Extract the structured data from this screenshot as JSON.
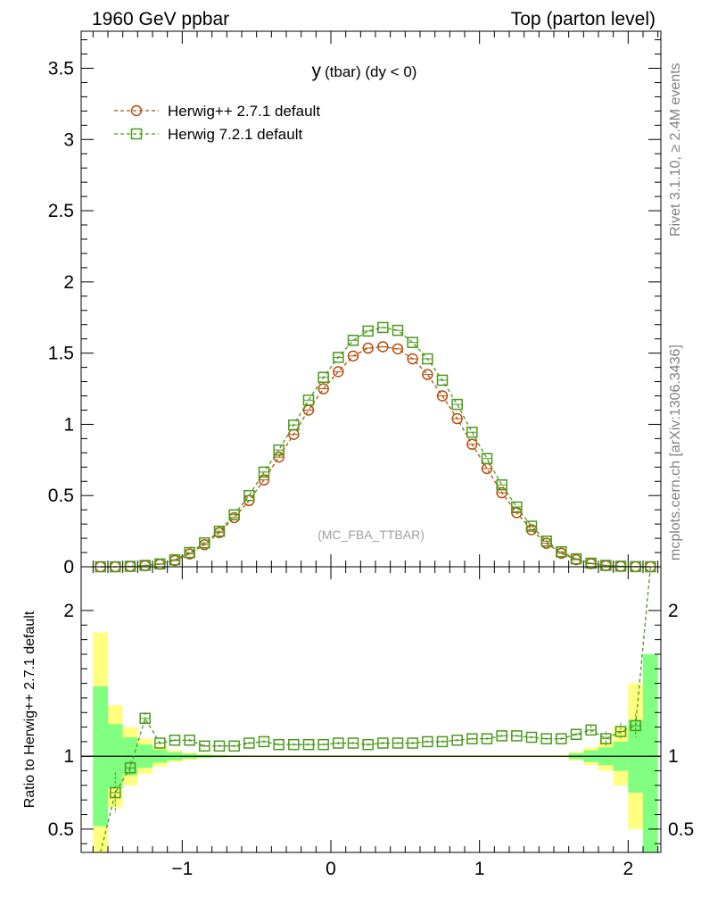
{
  "header": {
    "left": "1960 GeV ppbar",
    "right": "Top (parton level)"
  },
  "side_labels": {
    "rivet": "Rivet 3.1.10, ≥ 2.4M events",
    "mcplots": "mcplots.cern.ch [arXiv:1306.3436]"
  },
  "chart_data": [
    {
      "type": "line",
      "panel": "main",
      "title_main": "y",
      "title_sub": "(tbar) (dy < 0)",
      "watermark": "(MC_FBA_TTBAR)",
      "xlim": [
        -1.68,
        2.22
      ],
      "ylim": [
        0,
        3.76
      ],
      "y_ticks": [
        0,
        0.5,
        1,
        1.5,
        2,
        2.5,
        3,
        3.5
      ],
      "y_tick_labels": [
        "0",
        "0.5",
        "1",
        "1.5",
        "2",
        "2.5",
        "3",
        "3.5"
      ],
      "legend_position": "top-left",
      "x": [
        -1.55,
        -1.45,
        -1.35,
        -1.25,
        -1.15,
        -1.05,
        -0.95,
        -0.85,
        -0.75,
        -0.65,
        -0.55,
        -0.45,
        -0.35,
        -0.25,
        -0.15,
        -0.05,
        0.05,
        0.15,
        0.25,
        0.35,
        0.45,
        0.55,
        0.65,
        0.75,
        0.85,
        0.95,
        1.05,
        1.15,
        1.25,
        1.35,
        1.45,
        1.55,
        1.65,
        1.75,
        1.85,
        1.95,
        2.05,
        2.15
      ],
      "series": [
        {
          "name": "Herwig++ 2.7.1 default",
          "color": "#b5500a",
          "marker": "circle",
          "values": [
            0.0,
            0.0,
            0.003,
            0.008,
            0.018,
            0.044,
            0.09,
            0.155,
            0.24,
            0.345,
            0.465,
            0.61,
            0.77,
            0.93,
            1.1,
            1.25,
            1.37,
            1.48,
            1.535,
            1.545,
            1.53,
            1.46,
            1.35,
            1.2,
            1.04,
            0.86,
            0.69,
            0.52,
            0.38,
            0.26,
            0.165,
            0.095,
            0.05,
            0.022,
            0.008,
            0.003,
            0.001,
            0.0
          ]
        },
        {
          "name": "Herwig 7.2.1 default",
          "color": "#4a9a1a",
          "marker": "square",
          "values": [
            0.0,
            0.0,
            0.003,
            0.01,
            0.02,
            0.049,
            0.1,
            0.168,
            0.25,
            0.365,
            0.5,
            0.665,
            0.82,
            0.995,
            1.17,
            1.33,
            1.47,
            1.59,
            1.655,
            1.68,
            1.66,
            1.575,
            1.46,
            1.31,
            1.14,
            0.945,
            0.76,
            0.575,
            0.42,
            0.285,
            0.18,
            0.105,
            0.056,
            0.025,
            0.01,
            0.004,
            0.001,
            0.0
          ]
        }
      ]
    },
    {
      "type": "line",
      "panel": "ratio",
      "ylabel": "Ratio to Herwig++ 2.7.1 default",
      "xlim": [
        -1.68,
        2.22
      ],
      "ylim": [
        0.34,
        2.3
      ],
      "x_ticks": [
        -1,
        0,
        1,
        2
      ],
      "x_tick_labels": [
        "−1",
        "0",
        "1",
        "2"
      ],
      "y_ticks": [
        0.5,
        1,
        2
      ],
      "y_tick_labels": [
        "0.5",
        "1",
        "2"
      ],
      "reference_line": 1,
      "bands": {
        "yellow_color": "#ffff80",
        "green_color": "#80ff80",
        "x": [
          -1.55,
          -1.45,
          -1.35,
          -1.25,
          -1.15,
          -1.05,
          -0.95,
          -0.85,
          -0.75,
          -0.65,
          1.65,
          1.75,
          1.85,
          1.95,
          2.05,
          2.15
        ],
        "yellow_half_width": [
          0.85,
          0.35,
          0.2,
          0.12,
          0.07,
          0.04,
          0.025,
          0.015,
          0.01,
          0.006,
          0.03,
          0.06,
          0.1,
          0.2,
          0.5,
          0.7
        ],
        "green_half_width": [
          0.48,
          0.22,
          0.13,
          0.08,
          0.045,
          0.028,
          0.017,
          0.01,
          0.007,
          0.004,
          0.02,
          0.04,
          0.06,
          0.1,
          0.25,
          0.7
        ]
      },
      "series": [
        {
          "name": "Herwig 7.2.1 default",
          "color": "#4a9a1a",
          "marker": "square",
          "x": [
            -1.45,
            -1.35,
            -1.25,
            -1.15,
            -1.05,
            -0.95,
            -0.85,
            -0.75,
            -0.65,
            -0.55,
            -0.45,
            -0.35,
            -0.25,
            -0.15,
            -0.05,
            0.05,
            0.15,
            0.25,
            0.35,
            0.45,
            0.55,
            0.65,
            0.75,
            0.85,
            0.95,
            1.05,
            1.15,
            1.25,
            1.35,
            1.45,
            1.55,
            1.65,
            1.75,
            1.85,
            1.95,
            2.05
          ],
          "values": [
            0.75,
            0.92,
            1.26,
            1.09,
            1.11,
            1.11,
            1.07,
            1.07,
            1.07,
            1.09,
            1.1,
            1.08,
            1.08,
            1.08,
            1.08,
            1.09,
            1.09,
            1.08,
            1.09,
            1.09,
            1.09,
            1.1,
            1.1,
            1.11,
            1.12,
            1.12,
            1.14,
            1.14,
            1.13,
            1.12,
            1.12,
            1.15,
            1.18,
            1.12,
            1.17,
            1.21
          ]
        }
      ]
    }
  ]
}
